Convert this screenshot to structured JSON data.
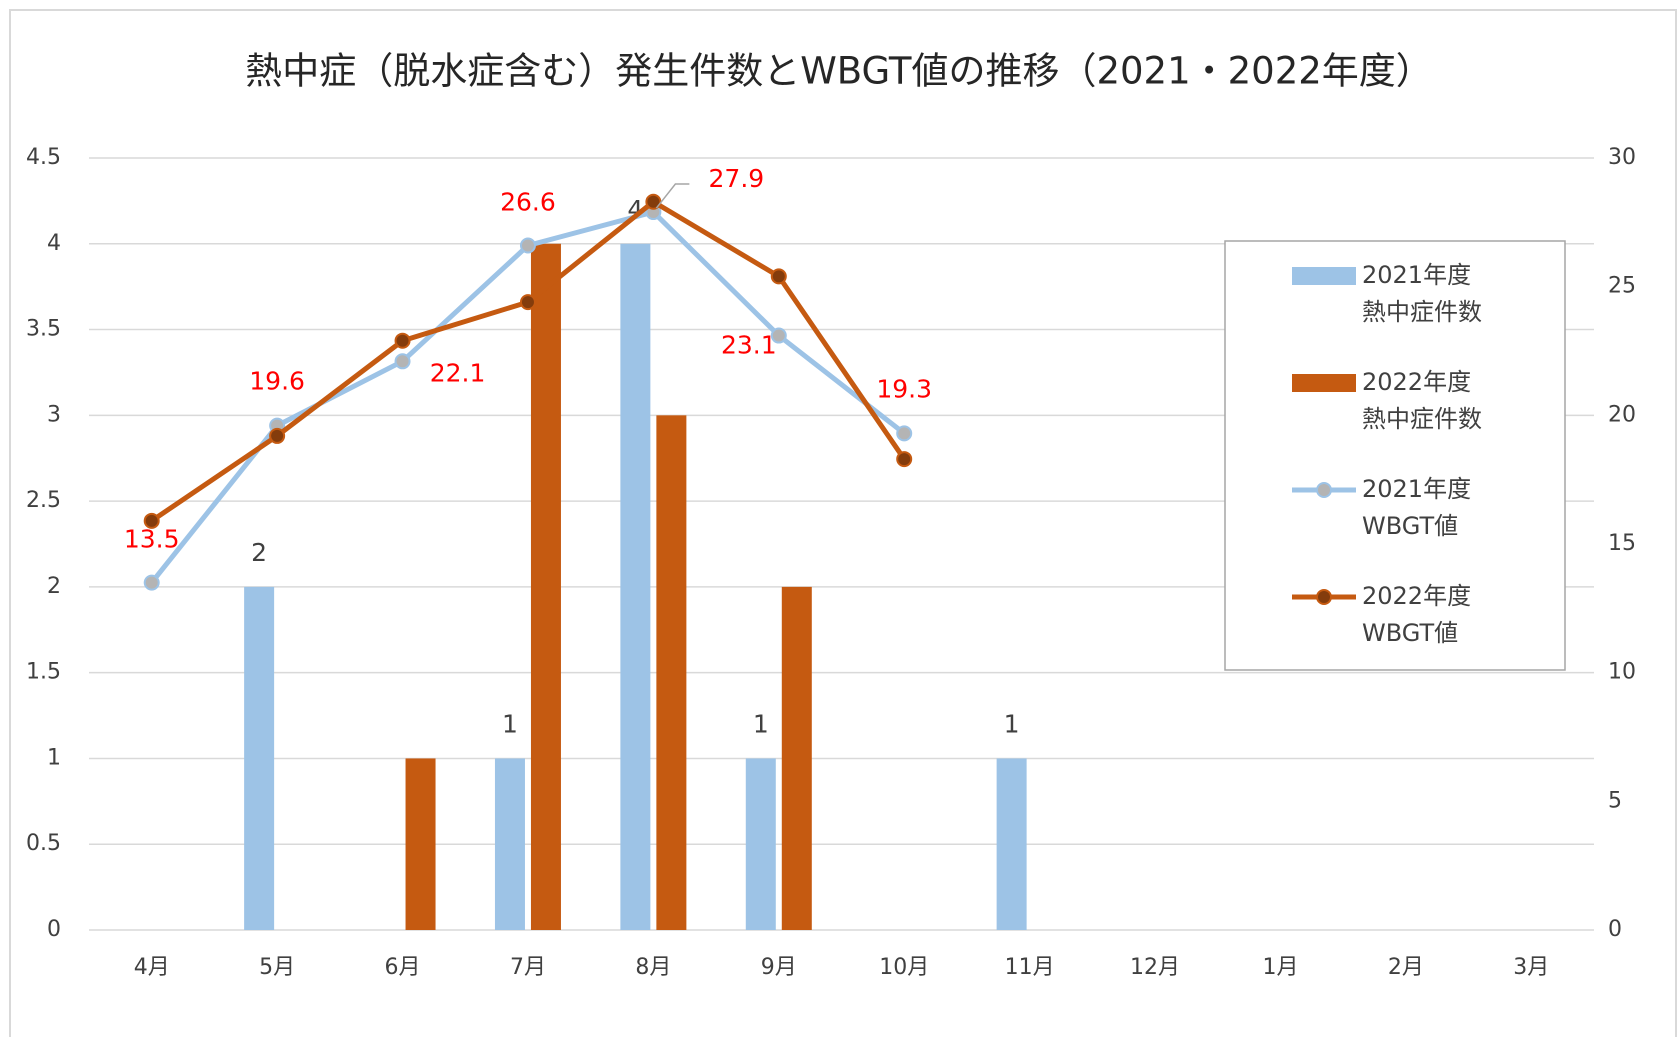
{
  "chart_data": {
    "type": "bar_line",
    "title": "熱中症（脱水症含む）発生件数とWBGT値の推移（2021・2022年度）",
    "categories": [
      "4月",
      "5月",
      "6月",
      "7月",
      "8月",
      "9月",
      "10月",
      "11月",
      "12月",
      "1月",
      "2月",
      "3月"
    ],
    "series": [
      {
        "name": "2021年度\n熱中症件数",
        "type": "bar",
        "color": "#9dc3e6",
        "axis": "y",
        "show_labels": true,
        "label_color": "#404040",
        "values": [
          0,
          2,
          0,
          1,
          4,
          1,
          0,
          1,
          0,
          0,
          0,
          0
        ]
      },
      {
        "name": "2022年度\n熱中症件数",
        "type": "bar",
        "color": "#c55a11",
        "axis": "y",
        "show_labels": false,
        "values": [
          0,
          0,
          1,
          4,
          3,
          2,
          0,
          0,
          0,
          0,
          0,
          0
        ]
      },
      {
        "name": "2021年度\nWBGT値",
        "type": "line",
        "color": "#9dc3e6",
        "marker_color": "#b4b4b4",
        "axis": "y2",
        "show_labels": true,
        "label_color": "#ff0000",
        "values": [
          13.5,
          19.6,
          22.1,
          26.6,
          27.9,
          23.1,
          19.3,
          null,
          null,
          null,
          null,
          null
        ]
      },
      {
        "name": "2022年度\nWBGT値",
        "type": "line",
        "color": "#c55a11",
        "marker_color": "#843c0c",
        "axis": "y2",
        "show_labels": false,
        "values": [
          15.9,
          19.2,
          22.9,
          24.4,
          28.3,
          25.4,
          18.3,
          null,
          null,
          null,
          null,
          null
        ]
      }
    ],
    "ylim": [
      0,
      4.5
    ],
    "yticks": [
      0,
      0.5,
      1,
      1.5,
      2,
      2.5,
      3,
      3.5,
      4,
      4.5
    ],
    "y2lim": [
      0,
      30
    ],
    "y2ticks": [
      0,
      5,
      10,
      15,
      20,
      25,
      30
    ],
    "grid": true,
    "legend": "right"
  }
}
